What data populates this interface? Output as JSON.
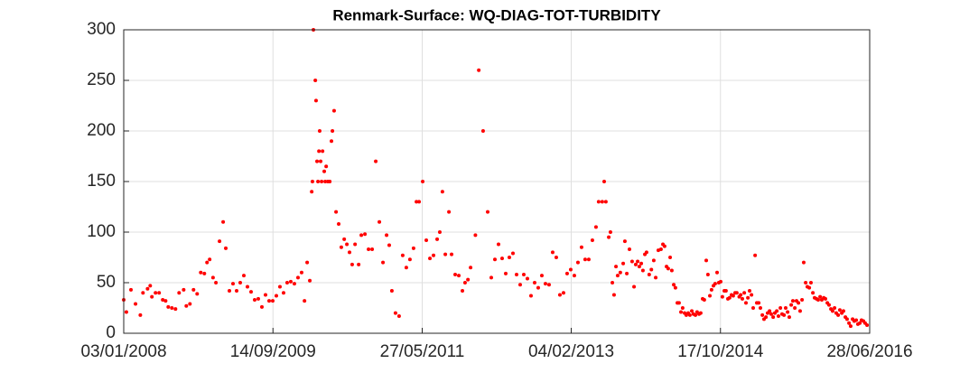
{
  "chart_data": {
    "type": "scatter",
    "title": "Renmark-Surface: WQ-DIAG-TOT-TURBIDITY",
    "color": "#ff0000",
    "grid": true,
    "xlim": [
      "03/01/2008",
      "28/06/2016"
    ],
    "xticks": [
      "03/01/2008",
      "14/09/2009",
      "27/05/2011",
      "04/02/2013",
      "17/10/2014",
      "28/06/2016"
    ],
    "ylim": [
      0,
      300
    ],
    "yticks": [
      0,
      50,
      100,
      150,
      200,
      250,
      300
    ],
    "x": [
      "03/01/2008",
      "14/01/2008",
      "02/02/2008",
      "21/02/2008",
      "12/03/2008",
      "23/03/2008",
      "11/04/2008",
      "22/04/2008",
      "29/04/2008",
      "14/05/2008",
      "29/05/2008",
      "13/06/2008",
      "25/06/2008",
      "06/07/2008",
      "21/07/2008",
      "05/08/2008",
      "20/08/2008",
      "08/09/2008",
      "19/09/2008",
      "04/10/2008",
      "19/10/2008",
      "03/11/2008",
      "18/11/2008",
      "03/12/2008",
      "14/12/2008",
      "25/12/2008",
      "08/01/2009",
      "20/01/2009",
      "04/02/2009",
      "19/02/2009",
      "02/03/2009",
      "17/03/2009",
      "01/04/2009",
      "16/04/2009",
      "01/05/2009",
      "16/05/2009",
      "31/05/2009",
      "15/06/2009",
      "30/06/2009",
      "15/07/2009",
      "30/07/2009",
      "14/08/2009",
      "29/08/2009",
      "13/09/2009",
      "28/09/2009",
      "13/10/2009",
      "28/10/2009",
      "12/11/2009",
      "27/11/2009",
      "12/12/2009",
      "27/12/2009",
      "11/01/2010",
      "23/01/2010",
      "03/02/2010",
      "14/02/2010",
      "22/02/2010",
      "25/02/2010",
      "01/03/2010",
      "09/03/2010",
      "12/03/2010",
      "16/03/2010",
      "20/03/2010",
      "24/03/2010",
      "27/03/2010",
      "31/03/2010",
      "04/04/2010",
      "08/04/2010",
      "15/04/2010",
      "19/04/2010",
      "23/04/2010",
      "30/04/2010",
      "08/05/2010",
      "15/05/2010",
      "19/05/2010",
      "26/05/2010",
      "03/06/2010",
      "14/06/2010",
      "25/06/2010",
      "07/07/2010",
      "18/07/2010",
      "29/07/2010",
      "09/08/2010",
      "21/08/2010",
      "05/09/2010",
      "16/09/2010",
      "01/10/2010",
      "16/10/2010",
      "31/10/2010",
      "15/11/2010",
      "30/11/2010",
      "15/12/2010",
      "30/12/2010",
      "10/01/2011",
      "21/01/2011",
      "05/02/2011",
      "20/02/2011",
      "07/03/2011",
      "22/03/2011",
      "06/04/2011",
      "21/04/2011",
      "03/05/2011",
      "14/05/2011",
      "29/05/2011",
      "13/06/2011",
      "28/06/2011",
      "13/07/2011",
      "28/07/2011",
      "08/08/2011",
      "19/08/2011",
      "31/08/2011",
      "15/09/2011",
      "26/09/2011",
      "11/10/2011",
      "26/10/2011",
      "10/11/2011",
      "21/11/2011",
      "03/12/2011",
      "14/12/2011",
      "03/01/2012",
      "17/01/2012",
      "04/02/2012",
      "23/02/2012",
      "09/03/2012",
      "24/03/2012",
      "08/04/2012",
      "23/04/2012",
      "08/05/2012",
      "23/05/2012",
      "07/06/2012",
      "22/06/2012",
      "07/07/2012",
      "22/07/2012",
      "06/08/2012",
      "21/08/2012",
      "05/09/2012",
      "20/09/2012",
      "05/10/2012",
      "20/10/2012",
      "04/11/2012",
      "19/11/2012",
      "04/12/2012",
      "19/12/2012",
      "03/01/2013",
      "18/01/2013",
      "02/02/2013",
      "17/02/2013",
      "04/03/2013",
      "19/03/2013",
      "03/04/2013",
      "18/04/2013",
      "03/05/2013",
      "18/05/2013",
      "29/05/2013",
      "13/06/2013",
      "21/06/2013",
      "28/06/2013",
      "10/07/2013",
      "17/07/2013",
      "25/07/2013",
      "01/08/2013",
      "09/08/2013",
      "16/08/2013",
      "27/08/2013",
      "08/09/2013",
      "15/09/2013",
      "23/09/2013",
      "04/10/2013",
      "15/10/2013",
      "23/10/2013",
      "30/10/2013",
      "07/11/2013",
      "14/11/2013",
      "22/11/2013",
      "29/11/2013",
      "07/12/2013",
      "14/12/2013",
      "25/12/2013",
      "03/01/2014",
      "13/01/2014",
      "21/01/2014",
      "01/02/2014",
      "12/02/2014",
      "20/02/2014",
      "27/02/2014",
      "07/03/2014",
      "14/03/2014",
      "22/03/2014",
      "29/03/2014",
      "06/04/2014",
      "13/04/2014",
      "21/04/2014",
      "28/04/2014",
      "06/05/2014",
      "13/05/2014",
      "21/05/2014",
      "28/05/2014",
      "05/06/2014",
      "12/06/2014",
      "20/06/2014",
      "27/06/2014",
      "05/07/2014",
      "12/07/2014",
      "20/07/2014",
      "27/07/2014",
      "04/08/2014",
      "11/08/2014",
      "19/08/2014",
      "26/08/2014",
      "03/09/2014",
      "10/09/2014",
      "18/09/2014",
      "25/09/2014",
      "03/10/2014",
      "10/10/2014",
      "18/10/2014",
      "25/10/2014",
      "02/11/2014",
      "09/11/2014",
      "17/11/2014",
      "24/11/2014",
      "02/12/2014",
      "09/12/2014",
      "17/12/2014",
      "24/12/2014",
      "03/01/2015",
      "09/01/2015",
      "16/01/2015",
      "24/01/2015",
      "31/01/2015",
      "08/02/2015",
      "15/02/2015",
      "23/02/2015",
      "02/03/2015",
      "10/03/2015",
      "17/03/2015",
      "25/03/2015",
      "01/04/2015",
      "09/04/2015",
      "16/04/2015",
      "24/04/2015",
      "01/05/2015",
      "09/05/2015",
      "16/05/2015",
      "24/05/2015",
      "31/05/2015",
      "08/06/2015",
      "15/06/2015",
      "23/06/2015",
      "30/06/2015",
      "08/07/2015",
      "15/07/2015",
      "23/07/2015",
      "30/07/2015",
      "07/08/2015",
      "14/08/2015",
      "22/08/2015",
      "29/08/2015",
      "06/09/2015",
      "13/09/2015",
      "21/09/2015",
      "28/09/2015",
      "06/10/2015",
      "13/10/2015",
      "21/10/2015",
      "28/10/2015",
      "05/11/2015",
      "12/11/2015",
      "20/11/2015",
      "27/11/2015",
      "05/12/2015",
      "12/12/2015",
      "20/12/2015",
      "27/12/2015",
      "04/01/2016",
      "11/01/2016",
      "19/01/2016",
      "26/01/2016",
      "03/02/2016",
      "10/02/2016",
      "18/02/2016",
      "25/02/2016",
      "04/03/2016",
      "11/03/2016",
      "19/03/2016",
      "26/03/2016",
      "03/04/2016",
      "10/04/2016",
      "18/04/2016",
      "25/04/2016",
      "03/05/2016",
      "10/05/2016",
      "18/05/2016",
      "25/05/2016",
      "02/06/2016",
      "09/06/2016",
      "17/06/2016"
    ],
    "values": [
      33,
      21,
      43,
      29,
      18,
      40,
      44,
      47,
      36,
      40,
      40,
      33,
      32,
      26,
      25,
      24,
      40,
      43,
      27,
      29,
      43,
      39,
      60,
      59,
      70,
      73,
      55,
      50,
      91,
      110,
      84,
      42,
      49,
      42,
      50,
      57,
      46,
      41,
      33,
      34,
      26,
      38,
      32,
      32,
      37,
      46,
      40,
      50,
      51,
      49,
      55,
      60,
      32,
      70,
      52,
      140,
      150,
      300,
      250,
      230,
      170,
      150,
      180,
      200,
      170,
      150,
      180,
      160,
      150,
      165,
      150,
      150,
      190,
      200,
      220,
      120,
      108,
      85,
      93,
      88,
      80,
      68,
      88,
      68,
      97,
      98,
      83,
      83,
      170,
      110,
      70,
      97,
      87,
      42,
      20,
      17,
      77,
      65,
      73,
      84,
      130,
      130,
      150,
      92,
      74,
      77,
      93,
      100,
      140,
      78,
      120,
      78,
      58,
      57,
      42,
      50,
      53,
      65,
      97,
      260,
      200,
      120,
      55,
      73,
      88,
      74,
      59,
      75,
      79,
      58,
      48,
      58,
      54,
      37,
      50,
      45,
      57,
      49,
      48,
      80,
      75,
      38,
      40,
      59,
      63,
      57,
      70,
      85,
      73,
      73,
      92,
      105,
      130,
      130,
      150,
      130,
      95,
      100,
      50,
      38,
      66,
      57,
      60,
      69,
      91,
      59,
      83,
      71,
      46,
      68,
      71,
      66,
      69,
      62,
      78,
      80,
      58,
      63,
      72,
      55,
      82,
      83,
      88,
      86,
      66,
      64,
      75,
      62,
      48,
      45,
      30,
      30,
      21,
      25,
      20,
      18,
      20,
      18,
      22,
      19,
      18,
      21,
      19,
      20,
      34,
      33,
      72,
      58,
      37,
      43,
      47,
      49,
      60,
      50,
      51,
      36,
      42,
      42,
      34,
      35,
      38,
      37,
      40,
      40,
      36,
      38,
      34,
      40,
      30,
      35,
      42,
      38,
      25,
      77,
      30,
      30,
      25,
      18,
      14,
      16,
      20,
      22,
      19,
      16,
      20,
      22,
      17,
      25,
      19,
      18,
      25,
      21,
      16,
      28,
      32,
      25,
      32,
      30,
      22,
      33,
      70,
      50,
      46,
      45,
      50,
      40,
      35,
      34,
      33,
      36,
      33,
      35,
      34,
      30,
      28,
      24,
      22,
      25,
      20,
      18,
      23,
      20,
      22,
      16,
      14,
      10,
      7,
      14,
      12,
      13,
      9,
      10,
      13,
      12,
      10,
      8
    ]
  }
}
